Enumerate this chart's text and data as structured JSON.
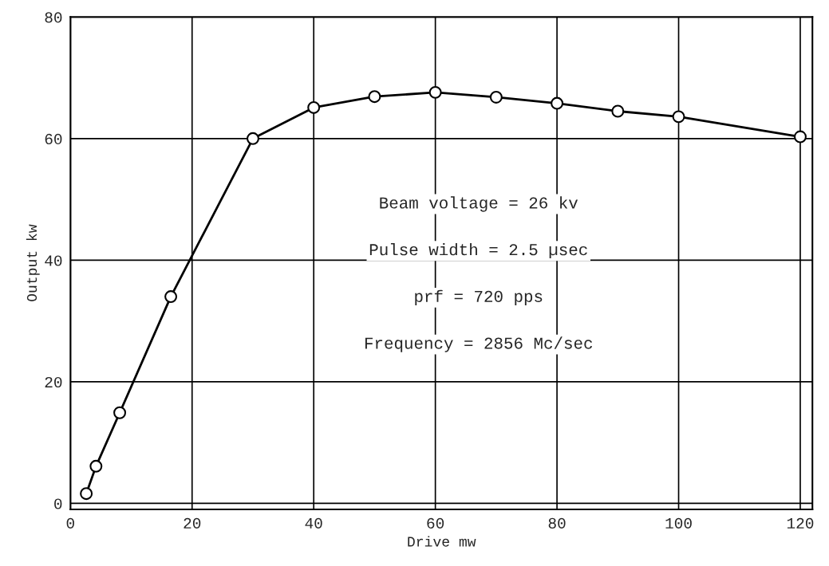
{
  "chart_data": {
    "type": "line",
    "xlabel": "Drive mw",
    "ylabel": "Output kw",
    "x": [
      2.6,
      4.2,
      8.1,
      16.5,
      30,
      40,
      50,
      60,
      70,
      80,
      90,
      100,
      120
    ],
    "series": [
      {
        "color": "#000000",
        "values": [
          1.6,
          6.1,
          14.9,
          34,
          60,
          65.1,
          66.9,
          67.6,
          66.8,
          65.8,
          64.5,
          63.6,
          60.3
        ]
      }
    ],
    "xlim": [
      0,
      122
    ],
    "ylim": [
      -1,
      80
    ],
    "xticks": [
      0,
      20,
      40,
      60,
      80,
      100,
      120
    ],
    "yticks": [
      0,
      20,
      40,
      60,
      80
    ],
    "grid": true,
    "marker": "circle",
    "line_style": "solid",
    "annotations": [
      "Beam voltage = 26 kv",
      "Pulse width = 2.5 µsec",
      "prf = 720 pps",
      "Frequency = 2856 Mc/sec"
    ]
  }
}
